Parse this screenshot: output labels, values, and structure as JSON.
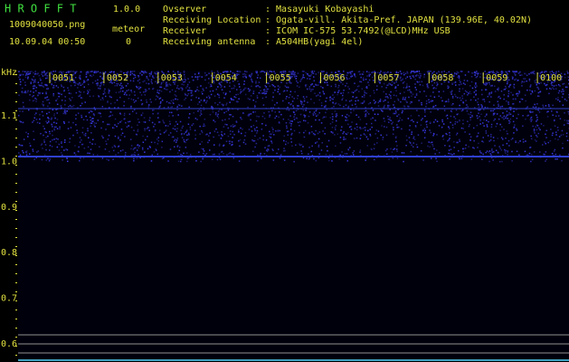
{
  "header": {
    "app": "H R O F F T",
    "version": "1.0.0",
    "file": "1009040050.png",
    "datetime": "10.09.04 00:50",
    "count_label": "meteor",
    "count": "0"
  },
  "info": [
    {
      "label": "Ovserver",
      "value": ": Masayuki Kobayashi"
    },
    {
      "label": "Receiving Location",
      "value": ": Ogata-vill. Akita-Pref. JAPAN (139.96E, 40.02N)"
    },
    {
      "label": "Receiver",
      "value": ": ICOM IC-575 53.7492(@LCD)MHz USB"
    },
    {
      "label": "Receiving antenna",
      "value": ": A504HB(yagi 4el)"
    }
  ],
  "spectrogram": {
    "unit": "kHz",
    "times": [
      "0051",
      "0052",
      "0053",
      "0054",
      "0055",
      "0056",
      "0057",
      "0058",
      "0059",
      "0100"
    ],
    "freq_labels": [
      "1.1",
      "1.0",
      "0.9",
      "0.8",
      "0.7",
      "0.6"
    ]
  }
}
